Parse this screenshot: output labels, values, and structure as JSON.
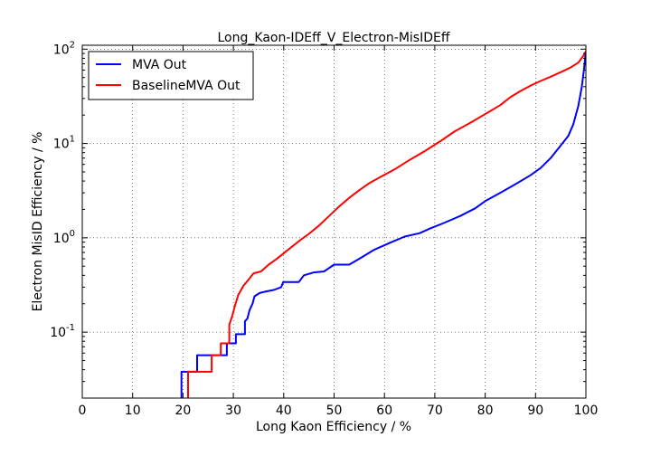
{
  "chart_data": {
    "type": "line",
    "title": "Long_Kaon-IDEff_V_Electron-MisIDEff",
    "xlabel": "Long Kaon Efficiency / %",
    "ylabel": "Electron MisID Efficiency / %",
    "xlim": [
      0,
      100
    ],
    "ylim": [
      0.02,
      110
    ],
    "yscale": "log",
    "grid": true,
    "legend_position": "upper-left",
    "x_ticks": [
      0,
      10,
      20,
      30,
      40,
      50,
      60,
      70,
      80,
      90,
      100
    ],
    "x_tick_labels": [
      "0",
      "10",
      "20",
      "30",
      "40",
      "50",
      "60",
      "70",
      "80",
      "90",
      "100"
    ],
    "y_ticks": [
      0.1,
      1,
      10,
      100
    ],
    "y_tick_labels": [
      {
        "base": "10",
        "exp": "-1"
      },
      {
        "base": "10",
        "exp": "0"
      },
      {
        "base": "10",
        "exp": "1"
      },
      {
        "base": "10",
        "exp": "2"
      }
    ],
    "series": [
      {
        "name": "MVA Out",
        "color": "#0000ff",
        "points": [
          [
            19.7,
            0.02
          ],
          [
            19.7,
            0.038
          ],
          [
            22.8,
            0.038
          ],
          [
            22.8,
            0.057
          ],
          [
            28.7,
            0.057
          ],
          [
            28.7,
            0.076
          ],
          [
            30.5,
            0.076
          ],
          [
            30.5,
            0.095
          ],
          [
            32.3,
            0.095
          ],
          [
            32.3,
            0.13
          ],
          [
            32.8,
            0.14
          ],
          [
            33.2,
            0.17
          ],
          [
            33.8,
            0.2
          ],
          [
            34.2,
            0.24
          ],
          [
            35.2,
            0.26
          ],
          [
            36.5,
            0.27
          ],
          [
            38,
            0.28
          ],
          [
            39.5,
            0.3
          ],
          [
            39.9,
            0.34
          ],
          [
            41,
            0.34
          ],
          [
            43,
            0.34
          ],
          [
            44,
            0.4
          ],
          [
            46,
            0.43
          ],
          [
            48,
            0.44
          ],
          [
            50,
            0.52
          ],
          [
            53,
            0.52
          ],
          [
            55,
            0.6
          ],
          [
            58,
            0.75
          ],
          [
            61,
            0.88
          ],
          [
            64,
            1.03
          ],
          [
            67,
            1.12
          ],
          [
            69,
            1.25
          ],
          [
            72,
            1.45
          ],
          [
            75,
            1.7
          ],
          [
            78,
            2.05
          ],
          [
            80,
            2.45
          ],
          [
            83,
            3.0
          ],
          [
            86,
            3.7
          ],
          [
            89,
            4.6
          ],
          [
            91,
            5.5
          ],
          [
            93,
            7.0
          ],
          [
            95,
            9.5
          ],
          [
            96.5,
            12
          ],
          [
            97.5,
            16
          ],
          [
            98.5,
            25
          ],
          [
            99.2,
            40
          ],
          [
            99.6,
            60
          ],
          [
            100,
            95
          ]
        ]
      },
      {
        "name": "BaselineMVA Out",
        "color": "#ff0000",
        "points": [
          [
            21,
            0.02
          ],
          [
            21,
            0.038
          ],
          [
            25.7,
            0.038
          ],
          [
            25.7,
            0.057
          ],
          [
            27.5,
            0.057
          ],
          [
            27.5,
            0.076
          ],
          [
            29.2,
            0.076
          ],
          [
            29.2,
            0.12
          ],
          [
            29.8,
            0.15
          ],
          [
            30.3,
            0.19
          ],
          [
            31,
            0.25
          ],
          [
            32,
            0.31
          ],
          [
            33,
            0.36
          ],
          [
            34,
            0.42
          ],
          [
            35.5,
            0.44
          ],
          [
            37,
            0.52
          ],
          [
            38.5,
            0.59
          ],
          [
            40.5,
            0.72
          ],
          [
            43,
            0.92
          ],
          [
            45,
            1.1
          ],
          [
            47,
            1.35
          ],
          [
            49,
            1.7
          ],
          [
            51,
            2.15
          ],
          [
            53,
            2.65
          ],
          [
            55,
            3.2
          ],
          [
            57,
            3.8
          ],
          [
            59,
            4.35
          ],
          [
            62,
            5.3
          ],
          [
            65,
            6.7
          ],
          [
            68,
            8.3
          ],
          [
            71,
            10.5
          ],
          [
            74,
            13.5
          ],
          [
            77,
            16.5
          ],
          [
            80,
            20.5
          ],
          [
            83,
            25.5
          ],
          [
            85,
            31
          ],
          [
            87,
            36
          ],
          [
            89,
            41
          ],
          [
            91,
            46
          ],
          [
            93,
            51
          ],
          [
            95,
            57
          ],
          [
            97,
            64
          ],
          [
            98.5,
            72
          ],
          [
            99.5,
            85
          ],
          [
            100,
            95
          ]
        ]
      }
    ]
  }
}
